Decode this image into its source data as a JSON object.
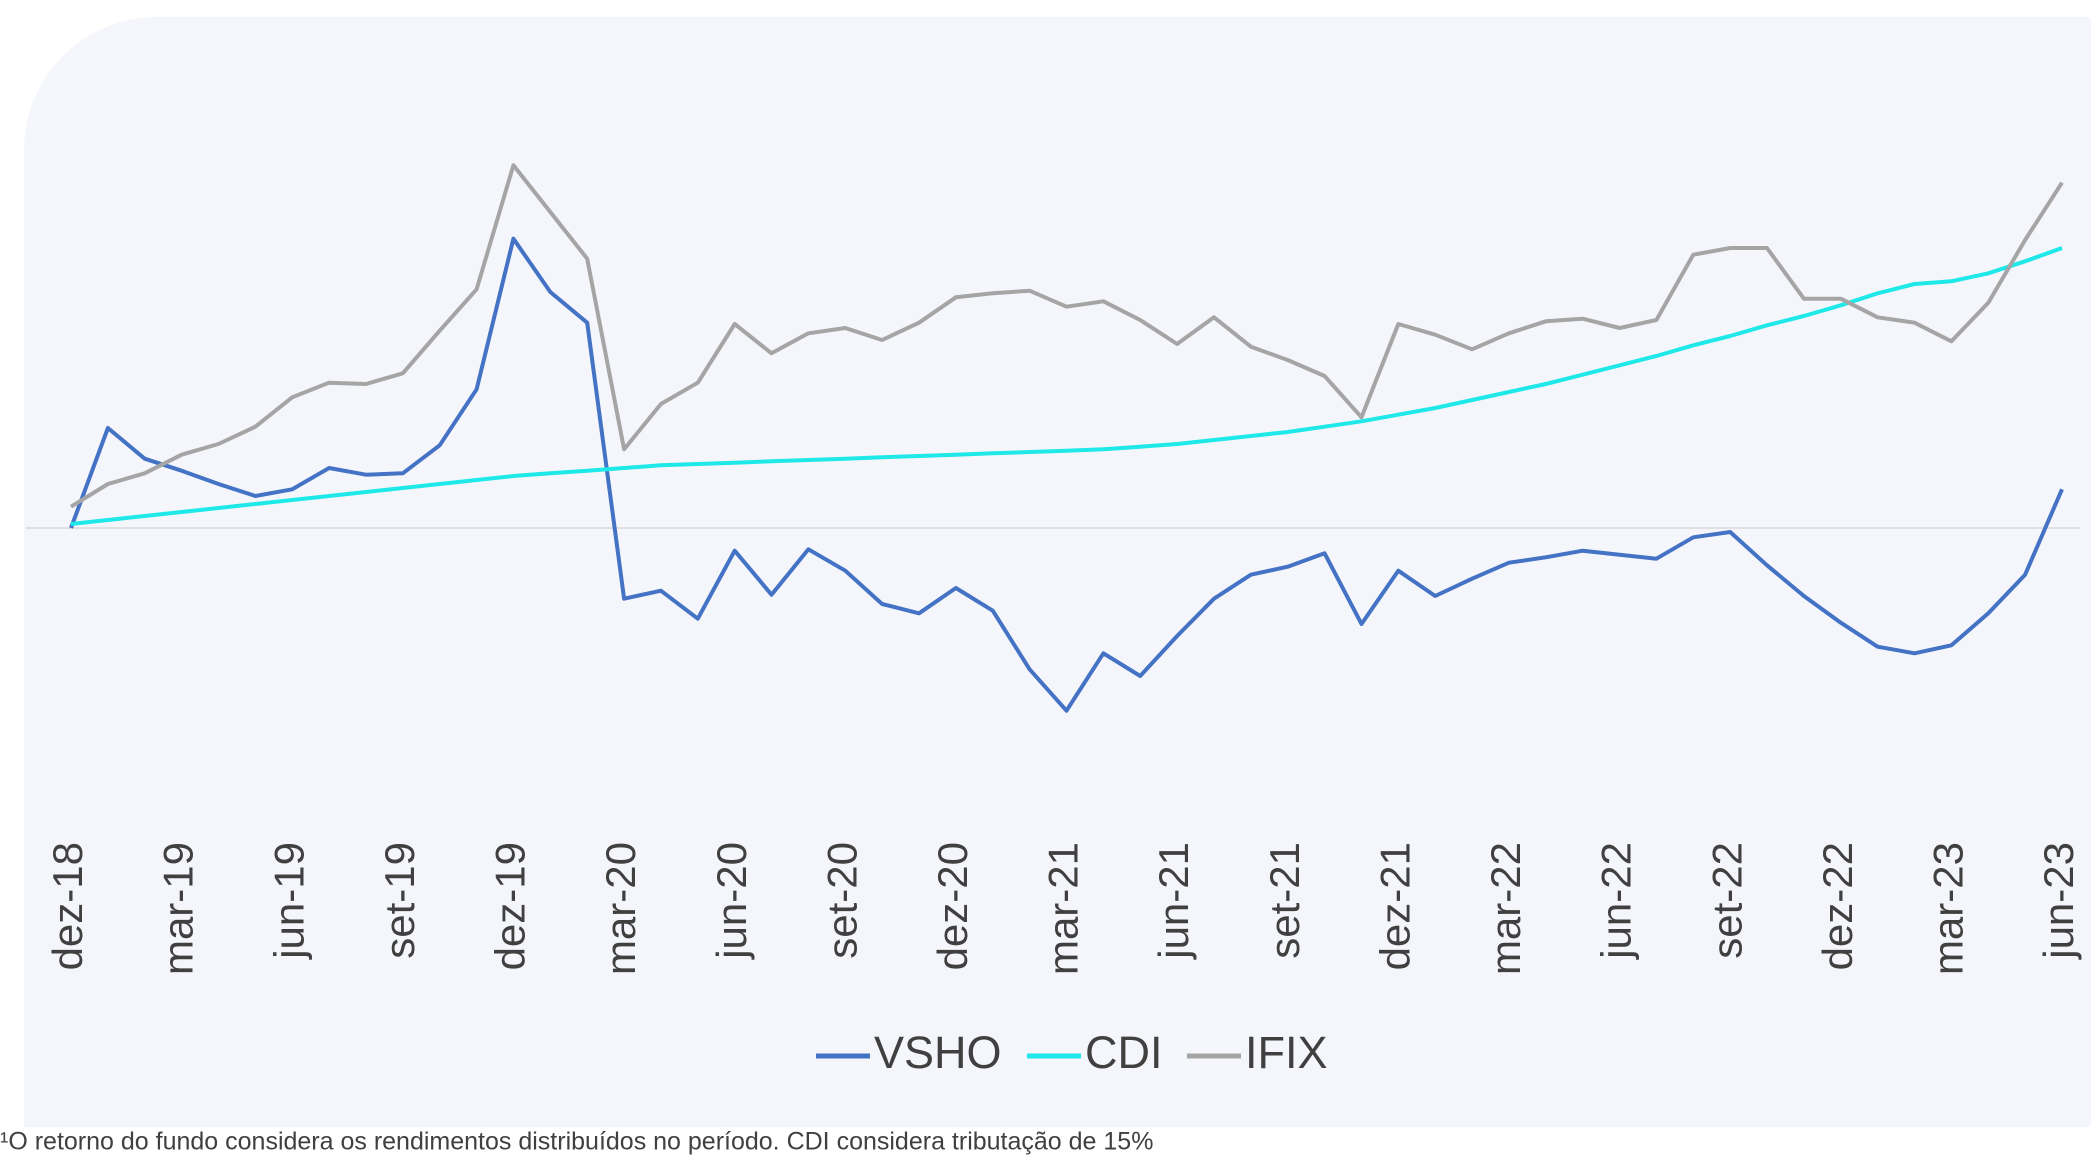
{
  "chart_data": {
    "type": "line",
    "categories": [
      "dez-18",
      null,
      null,
      "mar-19",
      null,
      null,
      "jun-19",
      null,
      null,
      "set-19",
      null,
      null,
      "dez-19",
      null,
      null,
      "mar-20",
      null,
      null,
      "jun-20",
      null,
      null,
      "set-20",
      null,
      null,
      "dez-20",
      null,
      null,
      "mar-21",
      null,
      null,
      "jun-21",
      null,
      null,
      "set-21",
      null,
      null,
      "dez-21",
      null,
      null,
      "mar-22",
      null,
      null,
      "jun-22",
      null,
      null,
      "set-22",
      null,
      null,
      "dez-22",
      null,
      null,
      "mar-23",
      null,
      null,
      "jun-23"
    ],
    "series": [
      {
        "name": "VSHO",
        "color": "#4472c4",
        "values": [
          0,
          75,
          52,
          43,
          33,
          24,
          29,
          45,
          40,
          41,
          62,
          104,
          217,
          177,
          154,
          -53,
          -47,
          -68,
          -17,
          -50,
          -16,
          -32,
          -57,
          -64,
          -45,
          -62,
          -106,
          -137,
          -94,
          -111,
          -81,
          -53,
          -35,
          -29,
          -19,
          -72,
          -32,
          -51,
          -38,
          -26,
          -22,
          -17,
          -20,
          -23,
          -7,
          -3,
          -28,
          -51,
          -71,
          -89,
          -94,
          -88,
          -64,
          -35,
          29
        ]
      },
      {
        "name": "CDI",
        "color": "#1ee8e8",
        "values": [
          3,
          6,
          9,
          12,
          15,
          18,
          21,
          24,
          27,
          30,
          33,
          36,
          39,
          41,
          43,
          45,
          47,
          48,
          49,
          50,
          51,
          52,
          53,
          54,
          55,
          56,
          57,
          58,
          59,
          61,
          63,
          66,
          69,
          72,
          76,
          80,
          85,
          90,
          96,
          102,
          108,
          115,
          122,
          129,
          137,
          144,
          152,
          159,
          167,
          176,
          183,
          185,
          191,
          200,
          210
        ]
      },
      {
        "name": "IFIX",
        "color": "#a5a5a5",
        "values": [
          16,
          33,
          41,
          55,
          63,
          76,
          98,
          109,
          108,
          116,
          148,
          179,
          272,
          237,
          202,
          59,
          93,
          109,
          153,
          131,
          146,
          150,
          141,
          154,
          173,
          176,
          178,
          166,
          170,
          156,
          138,
          158,
          136,
          126,
          114,
          83,
          153,
          145,
          134,
          146,
          155,
          157,
          150,
          156,
          205,
          210,
          210,
          172,
          172,
          158,
          154,
          140,
          169,
          216,
          259
        ]
      }
    ],
    "ylim": [
      -225,
      375
    ],
    "legend": "bottom",
    "footnote": "¹O retorno do fundo considera os rendimentos distribuídos no período. CDI considera tributação de 15%"
  }
}
